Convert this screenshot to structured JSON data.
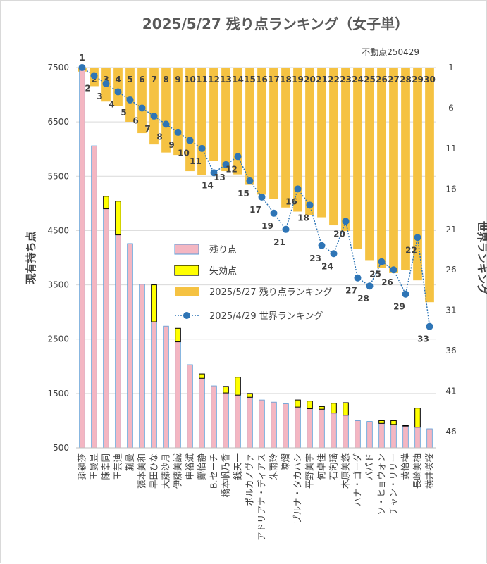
{
  "chart_data": {
    "type": "bar",
    "title": "2025/5/27 残り点ランキング（女子単）",
    "subtitle": "不動点250429",
    "ylabel_left": "現有持ち点",
    "ylabel_right": "世界ランキング",
    "ylim_left": [
      500,
      7500
    ],
    "yticks_left": [
      500,
      1500,
      2500,
      3500,
      4500,
      5500,
      6500,
      7500
    ],
    "ylim_right_inverted": [
      1,
      48
    ],
    "yticks_right": [
      1,
      6,
      11,
      16,
      21,
      26,
      31,
      36,
      41,
      46
    ],
    "grid": true,
    "legend_position": "center",
    "categories": [
      "孫穎莎",
      "王曼昱",
      "陳幸同",
      "王芸迪",
      "蒯曼",
      "張本美和",
      "早田ひな",
      "大藤沙月",
      "伊藤美誠",
      "申裕斌",
      "鄭怡静",
      "B.セーチ",
      "橋本帆乃香",
      "銭天一",
      "ポルカノヴァ",
      "アドリアナ・ディアス",
      "朱雨玲",
      "陳熠",
      "ブルナ・タカハシ",
      "平野美宇",
      "何卓佳",
      "石洵瑶",
      "木原美悠",
      "ハナ・ゴーダ",
      "バパド",
      "ソ・ヒョウォン",
      "チャン・リリー",
      "黄怡樺",
      "長崎美柚",
      "横井咲桜"
    ],
    "series": [
      {
        "name": "残り点",
        "color": "#f4b6c2",
        "values": [
          7500,
          6060,
          4900,
          4420,
          4260,
          3510,
          2820,
          2740,
          2450,
          2030,
          1780,
          1640,
          1510,
          1470,
          1430,
          1380,
          1340,
          1310,
          1250,
          1220,
          1210,
          1140,
          1100,
          1000,
          985,
          950,
          930,
          900,
          880,
          850
        ]
      },
      {
        "name": "失効点",
        "color": "#ffff00",
        "values": [
          0,
          0,
          230,
          620,
          0,
          0,
          680,
          0,
          250,
          0,
          80,
          0,
          120,
          330,
          70,
          0,
          0,
          0,
          130,
          140,
          50,
          180,
          230,
          0,
          0,
          50,
          70,
          10,
          350,
          0
        ]
      },
      {
        "name": "2025/5/27 残り点ランキング",
        "color": "#f5c242",
        "values": [
          1,
          2,
          3,
          4,
          5,
          6,
          7,
          8,
          9,
          10,
          11,
          12,
          13,
          14,
          15,
          16,
          17,
          18,
          19,
          20,
          21,
          22,
          23,
          24,
          25,
          26,
          27,
          28,
          29,
          30
        ]
      },
      {
        "name": "2025/4/29 世界ランキング",
        "color": "#2e75b6",
        "values": [
          1,
          2,
          3,
          4,
          5,
          6,
          7,
          8,
          9,
          10,
          11,
          14,
          13,
          12,
          15,
          17,
          19,
          21,
          16,
          18,
          23,
          24,
          20,
          27,
          28,
          25,
          26,
          29,
          22,
          33
        ]
      }
    ],
    "top_labels": [
      "1",
      "2",
      "3",
      "4",
      "5",
      "6",
      "7",
      "8",
      "9",
      "10",
      "11",
      "12",
      "13",
      "14",
      "15",
      "16",
      "17",
      "18",
      "19",
      "20",
      "21",
      "22",
      "23",
      "24",
      "25",
      "26",
      "27",
      "28",
      "29",
      "30"
    ],
    "current_rank_bar_ends": [
      1.5,
      3.3,
      5.2,
      5.7,
      7.7,
      9.1,
      10.5,
      11.5,
      11.8,
      13.8,
      14.3,
      12.5,
      13.8,
      14.2,
      15.5,
      16.7,
      17.2,
      18.3,
      18.8,
      19.2,
      19.5,
      20.5,
      21.2,
      23.4,
      24.8,
      25.8,
      26.4,
      26.0,
      27.3,
      30.0
    ]
  }
}
